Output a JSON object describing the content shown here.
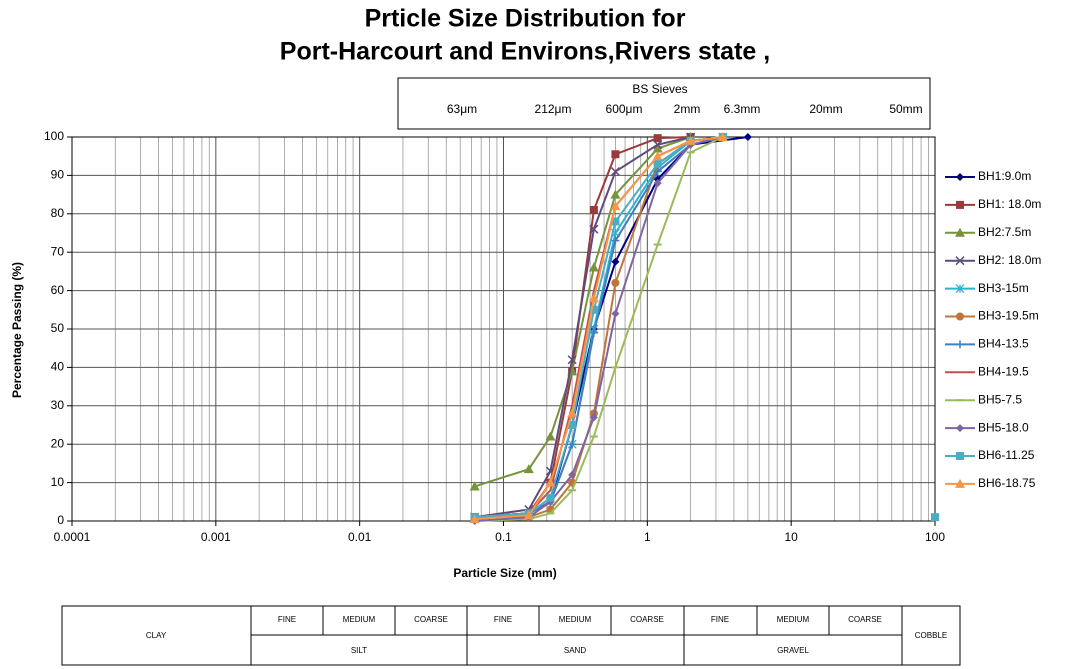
{
  "chart_data": {
    "type": "line",
    "title": "Prticle Size Distribution for",
    "subtitle": "Port-Harcourt and  Environs,Rivers state ,",
    "x_label": "Particle  Size (mm)",
    "y_label": "Percentage Passing (%)",
    "xscale": "log",
    "xlim": [
      0.0001,
      100
    ],
    "ylim": [
      0,
      100
    ],
    "xticks": [
      0.0001,
      0.001,
      0.01,
      0.1,
      1,
      10,
      100
    ],
    "yticks": [
      0,
      10,
      20,
      30,
      40,
      50,
      60,
      70,
      80,
      90,
      100
    ],
    "grid": true,
    "legend": "right",
    "series": [
      {
        "name": "BH1:9.0m",
        "color": "#000080",
        "marker": "diamond",
        "x": [
          0.063,
          0.15,
          0.212,
          0.3,
          0.425,
          0.6,
          1.18,
          2,
          5
        ],
        "values": [
          1,
          2,
          5,
          25,
          50,
          67.5,
          89,
          98,
          100
        ]
      },
      {
        "name": "BH1: 18.0m",
        "color": "#9b3a3a",
        "marker": "square",
        "x": [
          0.063,
          0.15,
          0.212,
          0.3,
          0.425,
          0.6,
          1.18,
          2
        ],
        "values": [
          1,
          2,
          10,
          39,
          81,
          95.5,
          99.7,
          100
        ]
      },
      {
        "name": "BH2:7.5m",
        "color": "#77933c",
        "marker": "triangle",
        "x": [
          0.063,
          0.15,
          0.212,
          0.3,
          0.425,
          0.6,
          1.18,
          2
        ],
        "values": [
          9,
          13.5,
          22,
          39,
          66,
          85,
          97,
          100
        ]
      },
      {
        "name": "BH2: 18.0m",
        "color": "#604a7b",
        "marker": "x",
        "x": [
          0.063,
          0.15,
          0.212,
          0.3,
          0.425,
          0.6,
          1.18,
          2
        ],
        "values": [
          1,
          3,
          13,
          42,
          76,
          91,
          98,
          100
        ]
      },
      {
        "name": "BH3-15m",
        "color": "#31b0d0",
        "marker": "star",
        "x": [
          0.063,
          0.15,
          0.212,
          0.3,
          0.425,
          0.6,
          1.18,
          2,
          3.35
        ],
        "values": [
          1,
          2,
          5,
          20,
          50,
          75,
          92,
          99,
          100
        ]
      },
      {
        "name": "BH3-19.5m",
        "color": "#c0753a",
        "marker": "circle",
        "x": [
          0.063,
          0.15,
          0.212,
          0.3,
          0.425,
          0.6,
          1.18,
          2,
          3.35
        ],
        "values": [
          1,
          1,
          3,
          10,
          28,
          62,
          93,
          99,
          100
        ]
      },
      {
        "name": "BH4-13.5",
        "color": "#3d7fc0",
        "marker": "plus",
        "x": [
          0.063,
          0.15,
          0.212,
          0.3,
          0.425,
          0.6,
          1.18,
          2,
          3.35
        ],
        "values": [
          1,
          2,
          5,
          20,
          49,
          73,
          91,
          98,
          100
        ]
      },
      {
        "name": "BH4-19.5",
        "color": "#c0504d",
        "marker": "none",
        "x": [
          0.063,
          0.15,
          0.212,
          0.3,
          0.425,
          0.6,
          1.18,
          2,
          3.35
        ],
        "values": [
          1,
          2,
          8,
          30,
          60,
          82,
          95,
          99,
          100
        ]
      },
      {
        "name": "BH5-7.5",
        "color": "#9bbb59",
        "marker": "dash",
        "x": [
          0.063,
          0.15,
          0.212,
          0.3,
          0.425,
          0.6,
          1.18,
          2,
          3.35
        ],
        "values": [
          0,
          0.5,
          2,
          8,
          22,
          40,
          72,
          96,
          100
        ]
      },
      {
        "name": "BH5-18.0",
        "color": "#8064a2",
        "marker": "diamond",
        "x": [
          0.063,
          0.15,
          0.212,
          0.3,
          0.425,
          0.6,
          1.18,
          2,
          3.35
        ],
        "values": [
          0,
          1,
          5,
          12,
          27,
          54,
          88,
          98,
          100
        ]
      },
      {
        "name": "BH6-11.25",
        "color": "#4bacc6",
        "marker": "square",
        "x": [
          0.063,
          0.15,
          0.212,
          0.3,
          0.425,
          0.6,
          1.18,
          2,
          3.35,
          100
        ],
        "values": [
          1,
          2,
          6,
          25,
          55,
          78,
          93,
          99,
          100,
          1
        ]
      },
      {
        "name": "BH6-18.75",
        "color": "#f79646",
        "marker": "triangle",
        "x": [
          0.063,
          0.15,
          0.212,
          0.3,
          0.425,
          0.6,
          1.18,
          2,
          3.35
        ],
        "values": [
          0.5,
          1.5,
          10,
          28,
          58,
          82,
          95,
          99,
          100
        ]
      }
    ],
    "sieves": {
      "title": "BS Sieves",
      "labels": [
        "63μm",
        "212μm",
        "600μm",
        "2mm",
        "6.3mm",
        "20mm",
        "50mm"
      ]
    },
    "classification": {
      "top": [
        "FINE",
        "MEDIUM",
        "COARSE",
        "FINE",
        "MEDIUM",
        "COARSE",
        "FINE",
        "MEDIUM",
        "COARSE"
      ],
      "bottom": [
        "SILT",
        "SAND",
        "GRAVEL"
      ],
      "clay": "CLAY",
      "cobble": "COBBLE"
    }
  }
}
